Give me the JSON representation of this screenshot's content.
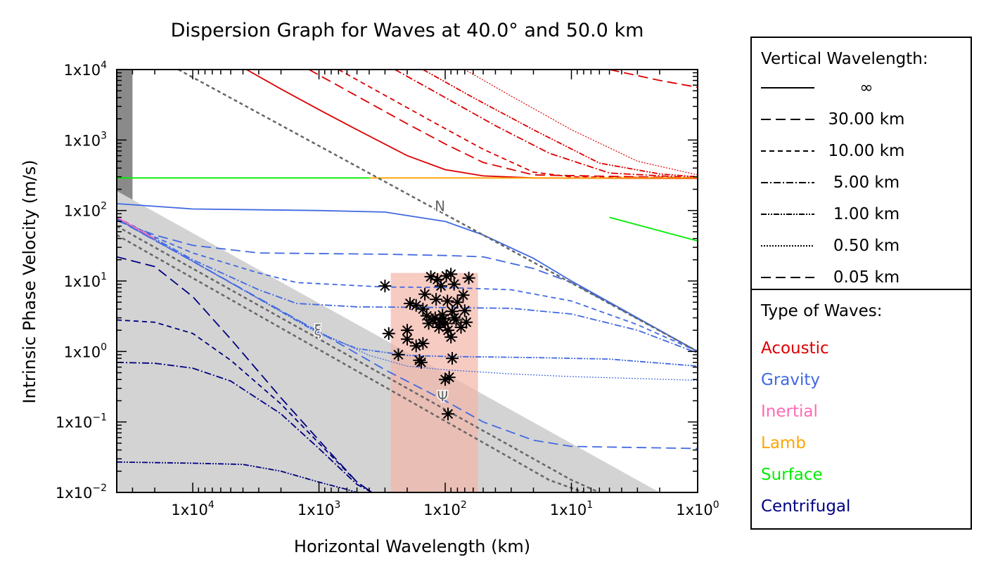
{
  "chart_data": {
    "type": "line",
    "title": "Dispersion Graph for Waves at 40.0° and 50.0 km",
    "xlabel": "Horizontal Wavelength (km)",
    "ylabel": "Intrinsic Phase Velocity (m/s)",
    "x_scale": "log",
    "y_scale": "log",
    "x_reversed": true,
    "xlim": [
      40000,
      1
    ],
    "ylim": [
      0.01,
      10000
    ],
    "x_ticks": [
      {
        "value": 10000,
        "base": "1x10",
        "exp": "4"
      },
      {
        "value": 1000,
        "base": "1x10",
        "exp": "3"
      },
      {
        "value": 100,
        "base": "1x10",
        "exp": "2"
      },
      {
        "value": 10,
        "base": "1x10",
        "exp": "1"
      },
      {
        "value": 1,
        "base": "1x10",
        "exp": "0"
      }
    ],
    "y_ticks": [
      {
        "value": 10000,
        "base": "1x10",
        "exp": "4"
      },
      {
        "value": 1000,
        "base": "1x10",
        "exp": "3"
      },
      {
        "value": 100,
        "base": "1x10",
        "exp": "2"
      },
      {
        "value": 10,
        "base": "1x10",
        "exp": "1"
      },
      {
        "value": 1,
        "base": "1x10",
        "exp": "0"
      },
      {
        "value": 0.1,
        "base": "1x10",
        "exp": "−1"
      },
      {
        "value": 0.01,
        "base": "1x10",
        "exp": "−2"
      }
    ],
    "annotations": [
      {
        "text": "N",
        "x": 110,
        "y": 115
      },
      {
        "text": "ξ",
        "x": 1020,
        "y": 2.0
      },
      {
        "text": "Ψ",
        "x": 105,
        "y": 0.23
      }
    ],
    "shaded_regions": [
      {
        "name": "dark-band",
        "x_range": [
          40000,
          30000
        ],
        "y_range": [
          0.01,
          10000
        ],
        "color": "#8a8a8a"
      },
      {
        "name": "grey-triangle",
        "polygon": [
          [
            40000,
            190
          ],
          [
            2,
            0.01
          ],
          [
            40000,
            0.01
          ]
        ],
        "color": "#d3d3d3"
      },
      {
        "name": "observation-box",
        "x_range": [
          270,
          55
        ],
        "y_range": [
          0.01,
          13
        ],
        "color": "#f2b5a8"
      }
    ],
    "series": [
      {
        "type": "Acoustic",
        "wavelength": "∞",
        "color": "#dd0000",
        "points": [
          [
            3750,
            10000
          ],
          [
            2000,
            5300
          ],
          [
            1000,
            2700
          ],
          [
            500,
            1400
          ],
          [
            200,
            600
          ],
          [
            100,
            380
          ],
          [
            50,
            310
          ],
          [
            20,
            290
          ],
          [
            1,
            285
          ]
        ]
      },
      {
        "type": "Acoustic",
        "wavelength": "30.00 km",
        "color": "#dd0000",
        "points": [
          [
            1200,
            10000
          ],
          [
            500,
            4200
          ],
          [
            200,
            1700
          ],
          [
            100,
            880
          ],
          [
            50,
            480
          ],
          [
            20,
            320
          ],
          [
            1,
            290
          ]
        ]
      },
      {
        "type": "Acoustic",
        "wavelength": "10.00 km",
        "color": "#dd0000",
        "points": [
          [
            700,
            10000
          ],
          [
            300,
            4300
          ],
          [
            100,
            1450
          ],
          [
            50,
            740
          ],
          [
            20,
            350
          ],
          [
            10,
            300
          ],
          [
            1,
            290
          ]
        ]
      },
      {
        "type": "Acoustic",
        "wavelength": "5.00 km",
        "color": "#dd0000",
        "points": [
          [
            250,
            10000
          ],
          [
            100,
            4000
          ],
          [
            40,
            1600
          ],
          [
            15,
            650
          ],
          [
            5,
            340
          ],
          [
            1,
            290
          ]
        ]
      },
      {
        "type": "Acoustic",
        "wavelength": "1.00 km",
        "color": "#dd0000",
        "points": [
          [
            150,
            10000
          ],
          [
            60,
            4000
          ],
          [
            20,
            1400
          ],
          [
            6,
            470
          ],
          [
            2,
            330
          ],
          [
            1,
            300
          ]
        ]
      },
      {
        "type": "Acoustic",
        "wavelength": "0.50 km",
        "color": "#dd0000",
        "points": [
          [
            70,
            10000
          ],
          [
            30,
            4200
          ],
          [
            10,
            1400
          ],
          [
            3,
            500
          ],
          [
            1,
            320
          ]
        ]
      },
      {
        "type": "Acoustic",
        "wavelength": "0.05 km",
        "color": "#dd0000",
        "points": [
          [
            5,
            10000
          ],
          [
            2,
            7000
          ],
          [
            1,
            5600
          ]
        ]
      },
      {
        "type": "Lamb",
        "wavelength": "∞",
        "color": "#ffa500",
        "points": [
          [
            400,
            290
          ],
          [
            1,
            290
          ]
        ]
      },
      {
        "type": "Surface",
        "wavelength": "∞",
        "color": "#00ee00",
        "points": [
          [
            40000,
            290
          ],
          [
            400,
            290
          ]
        ]
      },
      {
        "type": "Surface",
        "wavelength": "∞",
        "color": "#00ee00",
        "points": [
          [
            5,
            80
          ],
          [
            1,
            37
          ]
        ]
      },
      {
        "type": "Gravity",
        "wavelength": "∞",
        "color": "#4169e1",
        "points": [
          [
            40000,
            125
          ],
          [
            10000,
            105
          ],
          [
            1000,
            100
          ],
          [
            300,
            95
          ],
          [
            100,
            70
          ],
          [
            50,
            45
          ],
          [
            20,
            21
          ],
          [
            10,
            10
          ],
          [
            1,
            1
          ]
        ]
      },
      {
        "type": "Gravity",
        "wavelength": "30.00 km",
        "color": "#4169e1",
        "points": [
          [
            40000,
            72
          ],
          [
            20000,
            45
          ],
          [
            10000,
            32
          ],
          [
            3000,
            25
          ],
          [
            300,
            24
          ],
          [
            100,
            23
          ],
          [
            50,
            22
          ],
          [
            20,
            15
          ],
          [
            10,
            9.5
          ],
          [
            1,
            1
          ]
        ]
      },
      {
        "type": "Gravity",
        "wavelength": "10.00 km",
        "color": "#4169e1",
        "points": [
          [
            40000,
            80
          ],
          [
            20000,
            42
          ],
          [
            10000,
            25
          ],
          [
            3000,
            13
          ],
          [
            1500,
            9.5
          ],
          [
            300,
            8.2
          ],
          [
            100,
            8.1
          ],
          [
            30,
            7.5
          ],
          [
            10,
            5.2
          ],
          [
            3,
            2.4
          ],
          [
            1,
            1
          ]
        ]
      },
      {
        "type": "Gravity",
        "wavelength": "5.00 km",
        "color": "#4169e1",
        "points": [
          [
            40000,
            78
          ],
          [
            20000,
            40
          ],
          [
            10000,
            20
          ],
          [
            3000,
            7.5
          ],
          [
            1500,
            4.8
          ],
          [
            500,
            4.3
          ],
          [
            100,
            4.2
          ],
          [
            30,
            4.1
          ],
          [
            10,
            3.4
          ],
          [
            3,
            2.0
          ],
          [
            1,
            0.95
          ]
        ]
      },
      {
        "type": "Gravity",
        "wavelength": "1.00 km",
        "color": "#4169e1",
        "points": [
          [
            40000,
            76
          ],
          [
            10000,
            19
          ],
          [
            3000,
            5.6
          ],
          [
            1000,
            1.8
          ],
          [
            500,
            1.1
          ],
          [
            200,
            0.88
          ],
          [
            100,
            0.85
          ],
          [
            20,
            0.82
          ],
          [
            5,
            0.78
          ],
          [
            1,
            0.62
          ]
        ]
      },
      {
        "type": "Gravity",
        "wavelength": "0.50 km",
        "color": "#4169e1",
        "points": [
          [
            40000,
            76
          ],
          [
            10000,
            19
          ],
          [
            3000,
            5.6
          ],
          [
            1000,
            1.9
          ],
          [
            400,
            0.88
          ],
          [
            200,
            0.62
          ],
          [
            100,
            0.55
          ],
          [
            30,
            0.48
          ],
          [
            10,
            0.44
          ],
          [
            1,
            0.39
          ]
        ]
      },
      {
        "type": "Gravity",
        "wavelength": "0.05 km",
        "color": "#4169e1",
        "points": [
          [
            40000,
            75
          ],
          [
            10000,
            19
          ],
          [
            1000,
            1.9
          ],
          [
            300,
            0.55
          ],
          [
            100,
            0.2
          ],
          [
            50,
            0.1
          ],
          [
            20,
            0.055
          ],
          [
            10,
            0.045
          ],
          [
            1,
            0.042
          ]
        ]
      },
      {
        "type": "Inertial",
        "wavelength": "∞",
        "color": "#ff69b4",
        "points": [
          [
            40000,
            80
          ],
          [
            20000,
            40
          ]
        ]
      },
      {
        "type": "Centrifugal",
        "wavelength": "30.00 km",
        "color": "#000080",
        "points": [
          [
            40000,
            22
          ],
          [
            20000,
            16
          ],
          [
            10000,
            6
          ],
          [
            5000,
            1.5
          ],
          [
            2000,
            0.22
          ],
          [
            1000,
            0.055
          ],
          [
            500,
            0.014
          ],
          [
            380,
            0.01
          ]
        ]
      },
      {
        "type": "Centrifugal",
        "wavelength": "10.00 km",
        "color": "#000080",
        "points": [
          [
            40000,
            2.8
          ],
          [
            20000,
            2.6
          ],
          [
            10000,
            1.8
          ],
          [
            5000,
            0.75
          ],
          [
            2000,
            0.18
          ],
          [
            1000,
            0.05
          ],
          [
            500,
            0.014
          ],
          [
            380,
            0.01
          ]
        ]
      },
      {
        "type": "Centrifugal",
        "wavelength": "5.00 km",
        "color": "#000080",
        "points": [
          [
            40000,
            0.7
          ],
          [
            20000,
            0.68
          ],
          [
            10000,
            0.58
          ],
          [
            5000,
            0.38
          ],
          [
            2000,
            0.13
          ],
          [
            1000,
            0.042
          ],
          [
            500,
            0.013
          ],
          [
            380,
            0.01
          ]
        ]
      },
      {
        "type": "Centrifugal",
        "wavelength": "1.00 km",
        "color": "#000080",
        "points": [
          [
            40000,
            0.027
          ],
          [
            10000,
            0.026
          ],
          [
            4000,
            0.025
          ],
          [
            2000,
            0.02
          ],
          [
            1000,
            0.014
          ],
          [
            600,
            0.011
          ],
          [
            500,
            0.01
          ]
        ]
      },
      {
        "type": "Buoyancy limit",
        "wavelength": "",
        "color": "#666666",
        "points": [
          [
            13000,
            10000
          ],
          [
            1,
            1
          ]
        ]
      },
      {
        "type": "Inertial limit",
        "wavelength": "",
        "color": "#666666",
        "points": [
          [
            40000,
            60
          ],
          [
            10,
            0.015
          ],
          [
            6,
            0.01
          ]
        ]
      },
      {
        "type": "Inertial limit",
        "wavelength": "",
        "color": "#666666",
        "points": [
          [
            40000,
            45
          ],
          [
            15,
            0.015
          ],
          [
            8,
            0.01
          ]
        ]
      }
    ],
    "observations": [
      {
        "x": 300,
        "y": 8.5
      },
      {
        "x": 280,
        "y": 1.8
      },
      {
        "x": 235,
        "y": 0.9
      },
      {
        "x": 200,
        "y": 2.0
      },
      {
        "x": 200,
        "y": 1.5
      },
      {
        "x": 190,
        "y": 4.8
      },
      {
        "x": 170,
        "y": 4.5
      },
      {
        "x": 170,
        "y": 1.2
      },
      {
        "x": 160,
        "y": 0.75
      },
      {
        "x": 155,
        "y": 0.7
      },
      {
        "x": 150,
        "y": 4.0
      },
      {
        "x": 150,
        "y": 1.3
      },
      {
        "x": 145,
        "y": 6.5
      },
      {
        "x": 140,
        "y": 3.2
      },
      {
        "x": 135,
        "y": 2.5
      },
      {
        "x": 130,
        "y": 11.5
      },
      {
        "x": 125,
        "y": 2.8
      },
      {
        "x": 120,
        "y": 3.0
      },
      {
        "x": 118,
        "y": 5.5
      },
      {
        "x": 115,
        "y": 10.5
      },
      {
        "x": 112,
        "y": 2.2
      },
      {
        "x": 110,
        "y": 2.6
      },
      {
        "x": 108,
        "y": 8.5
      },
      {
        "x": 105,
        "y": 3.3
      },
      {
        "x": 103,
        "y": 2.9
      },
      {
        "x": 100,
        "y": 2.5
      },
      {
        "x": 100,
        "y": 0.4
      },
      {
        "x": 98,
        "y": 11.8
      },
      {
        "x": 96,
        "y": 5.2
      },
      {
        "x": 95,
        "y": 2.0
      },
      {
        "x": 95,
        "y": 0.13
      },
      {
        "x": 93,
        "y": 0.43
      },
      {
        "x": 90,
        "y": 12.5
      },
      {
        "x": 90,
        "y": 1.6
      },
      {
        "x": 88,
        "y": 3.7
      },
      {
        "x": 88,
        "y": 0.8
      },
      {
        "x": 85,
        "y": 9.0
      },
      {
        "x": 85,
        "y": 3.0
      },
      {
        "x": 82,
        "y": 2.8
      },
      {
        "x": 80,
        "y": 5.0
      },
      {
        "x": 75,
        "y": 2.2
      },
      {
        "x": 72,
        "y": 6.3
      },
      {
        "x": 70,
        "y": 3.8
      },
      {
        "x": 68,
        "y": 2.6
      },
      {
        "x": 65,
        "y": 11.0
      }
    ]
  },
  "legend": {
    "wavelength_title": "Vertical Wavelength:",
    "wavelength_items": [
      {
        "label": "∞",
        "dash": "solid"
      },
      {
        "label": "30.00 km",
        "dash": "long-dash"
      },
      {
        "label": "10.00 km",
        "dash": "dash"
      },
      {
        "label": "5.00 km",
        "dash": "dash-dot"
      },
      {
        "label": "1.00 km",
        "dash": "dash-dot-dot"
      },
      {
        "label": "0.50 km",
        "dash": "dotted"
      },
      {
        "label": "0.05 km",
        "dash": "long-dash"
      }
    ],
    "types_title": "Type of Waves:",
    "types": [
      {
        "label": "Acoustic",
        "color": "#dd0000"
      },
      {
        "label": "Gravity",
        "color": "#4169e1"
      },
      {
        "label": "Inertial",
        "color": "#ff69b4"
      },
      {
        "label": "Lamb",
        "color": "#ffa500"
      },
      {
        "label": "Surface",
        "color": "#00ee00"
      },
      {
        "label": "Centrifugal",
        "color": "#000080"
      }
    ]
  }
}
